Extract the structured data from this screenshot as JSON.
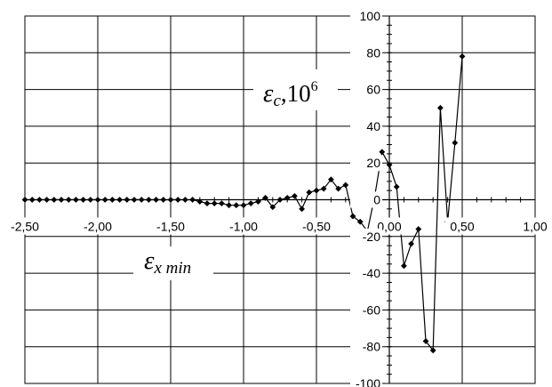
{
  "chart_data": {
    "type": "line",
    "title": "",
    "grid": true,
    "xlim": [
      -2.5,
      1.0
    ],
    "ylim": [
      -100,
      100
    ],
    "x_ticks": [
      -2.5,
      -2.0,
      -1.5,
      -1.0,
      -0.5,
      0.0,
      0.5,
      1.0
    ],
    "y_ticks": [
      -100,
      -80,
      -60,
      -40,
      -20,
      0,
      20,
      40,
      60,
      80,
      100
    ],
    "x_tick_labels": [
      "-2,50",
      "-2,00",
      "-1,50",
      "-1,00",
      "-0,50",
      "0,00",
      "0,50",
      "1,00"
    ],
    "y_tick_labels": [
      "-100",
      "-80",
      "-60",
      "-40",
      "-20",
      "0",
      "20",
      "40",
      "60",
      "80",
      "100"
    ],
    "ylabel": {
      "main": "ε",
      "sub": "c",
      "rest": ",10",
      "sup": "6"
    },
    "xlabel": {
      "main": "ε",
      "sub": "x min"
    },
    "series": [
      {
        "marker": "diamond",
        "x": [
          -2.5,
          -2.45,
          -2.4,
          -2.35,
          -2.3,
          -2.25,
          -2.2,
          -2.15,
          -2.1,
          -2.05,
          -2.0,
          -1.95,
          -1.9,
          -1.85,
          -1.8,
          -1.75,
          -1.7,
          -1.65,
          -1.6,
          -1.55,
          -1.5,
          -1.45,
          -1.4,
          -1.35,
          -1.3,
          -1.25,
          -1.2,
          -1.15,
          -1.1,
          -1.05,
          -1.0,
          -0.95,
          -0.9,
          -0.85,
          -0.8,
          -0.75,
          -0.7,
          -0.65,
          -0.6,
          -0.55,
          -0.5,
          -0.45,
          -0.4,
          -0.35,
          -0.3,
          -0.25,
          -0.2,
          -0.15,
          -0.1,
          -0.05,
          0.0,
          0.05,
          0.1,
          0.15,
          0.2,
          0.25,
          0.3,
          0.35,
          0.4,
          0.45,
          0.5
        ],
        "y": [
          0,
          0,
          0,
          0,
          0,
          0,
          0,
          0,
          0,
          0,
          0,
          0,
          0,
          0,
          0,
          0,
          0,
          0,
          0,
          0,
          0,
          0,
          0,
          0,
          -1,
          -2,
          -2,
          -2,
          -3,
          -3,
          -3,
          -2,
          -1,
          1,
          -4,
          0,
          1,
          2,
          -5,
          4,
          5,
          6,
          11,
          6,
          8,
          -9,
          -12,
          -17,
          2,
          26,
          19,
          7,
          -36,
          -24,
          -16,
          -77,
          -82,
          50,
          -12,
          31,
          78
        ]
      }
    ]
  }
}
